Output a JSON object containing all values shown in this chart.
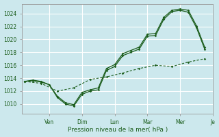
{
  "xlabel": "Pression niveau de la mer( hPa )",
  "bg_color": "#cce8ed",
  "grid_color": "#ffffff",
  "line_color": "#1a5c1a",
  "yticks": [
    1010,
    1012,
    1014,
    1016,
    1018,
    1020,
    1022,
    1024
  ],
  "ylim": [
    1008.5,
    1025.5
  ],
  "xlim": [
    -0.3,
    22.3
  ],
  "day_labels": [
    "Ven",
    "Dim",
    "Lun",
    "Mar",
    "Mer",
    "Je"
  ],
  "day_positions": [
    3,
    7,
    11,
    15,
    19,
    23
  ],
  "series1": {
    "x": [
      0,
      1,
      2,
      3,
      4,
      5,
      6,
      7,
      8,
      9,
      10,
      11,
      12,
      13,
      14,
      15,
      16,
      17,
      18,
      19,
      20,
      21,
      22
    ],
    "y": [
      1013.5,
      1013.7,
      1013.5,
      1013.0,
      1011.0,
      1010.0,
      1009.7,
      1011.5,
      1012.0,
      1012.2,
      1015.2,
      1015.8,
      1017.5,
      1018.0,
      1018.5,
      1020.5,
      1020.6,
      1023.1,
      1024.3,
      1024.5,
      1024.2,
      1021.8,
      1018.5
    ]
  },
  "series2": {
    "x": [
      0,
      1,
      2,
      3,
      4,
      5,
      6,
      7,
      8,
      9,
      10,
      11,
      12,
      13,
      14,
      15,
      16,
      17,
      18,
      19,
      20,
      21,
      22
    ],
    "y": [
      1013.5,
      1013.6,
      1013.4,
      1013.0,
      1011.2,
      1010.2,
      1009.9,
      1011.8,
      1012.2,
      1012.5,
      1015.5,
      1016.1,
      1017.8,
      1018.3,
      1018.8,
      1020.8,
      1020.9,
      1023.4,
      1024.5,
      1024.7,
      1024.5,
      1022.1,
      1018.8
    ]
  },
  "series3": {
    "x": [
      0,
      2,
      4,
      6,
      8,
      10,
      12,
      14,
      16,
      18,
      20,
      22
    ],
    "y": [
      1013.5,
      1013.2,
      1012.0,
      1012.5,
      1013.8,
      1014.2,
      1014.8,
      1015.5,
      1016.0,
      1015.8,
      1016.5,
      1017.0
    ]
  }
}
